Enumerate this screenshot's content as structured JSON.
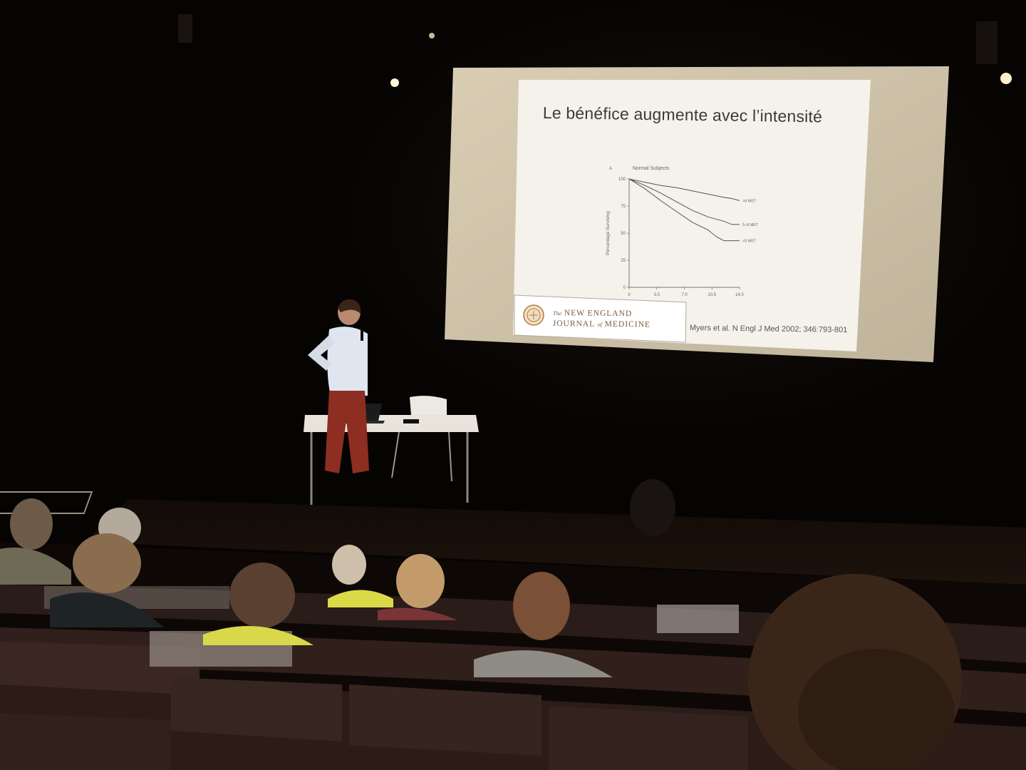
{
  "slide": {
    "title": "Le bénéfice augmente avec l’intensité",
    "citation": "Myers et al. N Engl J Med 2002; 346:793-801",
    "journal": {
      "line1_prefix": "The",
      "line1": "NEW ENGLAND",
      "line2_a": "JOURNAL",
      "line2_of": "of",
      "line2_b": "MEDICINE"
    }
  },
  "chart_data": {
    "type": "line",
    "panel_label": "A",
    "title": "Normal Subjects",
    "ylabel": "Percentage Surviving",
    "xlabel": "",
    "x_ticks": [
      "0",
      "3.5",
      "7.0",
      "10.5",
      "14.0"
    ],
    "y_ticks": [
      "0",
      "25",
      "50",
      "75",
      "100"
    ],
    "xlim": [
      0,
      14
    ],
    "ylim": [
      0,
      100
    ],
    "series": [
      {
        "name": ">8 MET",
        "x": [
          0,
          2,
          4,
          6,
          8,
          10,
          12,
          13,
          14
        ],
        "y": [
          100,
          97,
          94,
          92,
          89,
          86,
          83,
          82,
          80
        ]
      },
      {
        "name": "5–8 MET",
        "x": [
          0,
          2,
          4,
          6,
          8,
          10,
          12,
          13,
          14
        ],
        "y": [
          100,
          94,
          87,
          79,
          71,
          65,
          61,
          58,
          58
        ]
      },
      {
        "name": "<5 MET",
        "x": [
          0,
          2,
          4,
          6,
          8,
          10,
          11,
          12,
          13,
          14
        ],
        "y": [
          100,
          91,
          80,
          70,
          60,
          53,
          47,
          43,
          43,
          43
        ]
      }
    ],
    "grid": false,
    "legend": "line-end labels"
  },
  "colors": {
    "screen": "#f4f1ea",
    "stage_floor": "#0c0806",
    "seat": "#2c1e1a"
  }
}
